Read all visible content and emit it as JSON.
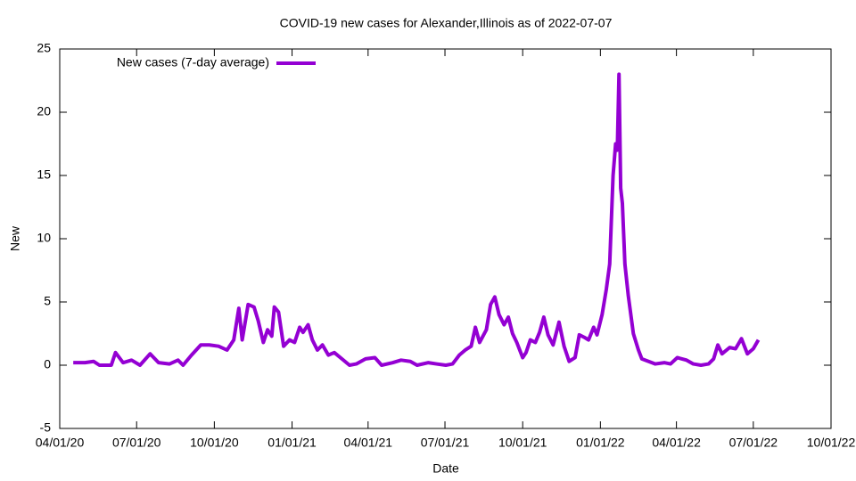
{
  "chart_data": {
    "type": "line",
    "title": "COVID-19 new cases for Alexander,Illinois as of 2022-07-07",
    "x_label": "Date",
    "y_label": "New",
    "legend": "top-left",
    "x": [
      "2020-04-17",
      "2020-05-01",
      "2020-05-11",
      "2020-05-18",
      "2020-06-01",
      "2020-06-06",
      "2020-06-15",
      "2020-06-25",
      "2020-07-05",
      "2020-07-17",
      "2020-07-27",
      "2020-08-09",
      "2020-08-19",
      "2020-08-25",
      "2020-09-04",
      "2020-09-15",
      "2020-09-25",
      "2020-10-06",
      "2020-10-16",
      "2020-10-24",
      "2020-10-30",
      "2020-11-03",
      "2020-11-10",
      "2020-11-17",
      "2020-11-22",
      "2020-11-28",
      "2020-12-03",
      "2020-12-08",
      "2020-12-11",
      "2020-12-16",
      "2020-12-22",
      "2020-12-29",
      "2021-01-04",
      "2021-01-10",
      "2021-01-14",
      "2021-01-20",
      "2021-01-25",
      "2021-01-31",
      "2021-02-06",
      "2021-02-13",
      "2021-02-20",
      "2021-03-01",
      "2021-03-10",
      "2021-03-18",
      "2021-03-29",
      "2021-04-09",
      "2021-04-17",
      "2021-04-30",
      "2021-05-10",
      "2021-05-21",
      "2021-05-29",
      "2021-06-11",
      "2021-06-21",
      "2021-07-02",
      "2021-07-10",
      "2021-07-18",
      "2021-07-25",
      "2021-08-01",
      "2021-08-06",
      "2021-08-11",
      "2021-08-19",
      "2021-08-24",
      "2021-08-29",
      "2021-09-03",
      "2021-09-09",
      "2021-09-14",
      "2021-09-19",
      "2021-09-24",
      "2021-10-01",
      "2021-10-05",
      "2021-10-10",
      "2021-10-16",
      "2021-10-21",
      "2021-10-26",
      "2021-10-31",
      "2021-11-06",
      "2021-11-13",
      "2021-11-19",
      "2021-11-25",
      "2021-12-02",
      "2021-12-07",
      "2021-12-13",
      "2021-12-18",
      "2021-12-24",
      "2021-12-28",
      "2022-01-03",
      "2022-01-08",
      "2022-01-12",
      "2022-01-16",
      "2022-01-19",
      "2022-01-21",
      "2022-01-23",
      "2022-01-25",
      "2022-01-27",
      "2022-01-30",
      "2022-02-03",
      "2022-02-09",
      "2022-02-15",
      "2022-02-19",
      "2022-02-27",
      "2022-03-07",
      "2022-03-18",
      "2022-03-25",
      "2022-04-02",
      "2022-04-13",
      "2022-04-21",
      "2022-04-30",
      "2022-05-09",
      "2022-05-15",
      "2022-05-20",
      "2022-05-25",
      "2022-06-03",
      "2022-06-10",
      "2022-06-17",
      "2022-06-24",
      "2022-07-01",
      "2022-07-07"
    ],
    "series": [
      {
        "name": "New cases (7-day average)",
        "color": "#9400d3",
        "values": [
          0.2,
          0.2,
          0.3,
          0.0,
          0.0,
          1.0,
          0.2,
          0.4,
          0.0,
          0.9,
          0.2,
          0.1,
          0.4,
          0.0,
          0.8,
          1.6,
          1.6,
          1.5,
          1.2,
          2.0,
          4.5,
          2.0,
          4.8,
          4.6,
          3.5,
          1.8,
          2.8,
          2.3,
          4.6,
          4.2,
          1.5,
          2.0,
          1.8,
          3.0,
          2.6,
          3.2,
          2.0,
          1.2,
          1.6,
          0.8,
          1.0,
          0.5,
          0.0,
          0.1,
          0.5,
          0.6,
          0.0,
          0.2,
          0.4,
          0.3,
          0.0,
          0.2,
          0.1,
          0.0,
          0.1,
          0.8,
          1.2,
          1.5,
          3.0,
          1.8,
          2.8,
          4.8,
          5.4,
          4.0,
          3.2,
          3.8,
          2.5,
          1.8,
          0.6,
          1.0,
          2.0,
          1.8,
          2.6,
          3.8,
          2.4,
          1.6,
          3.4,
          1.5,
          0.3,
          0.6,
          2.4,
          2.2,
          2.0,
          3.0,
          2.4,
          4.0,
          6.0,
          8.0,
          15.0,
          17.5,
          17.0,
          23.0,
          14.0,
          12.8,
          8.0,
          5.5,
          2.5,
          1.2,
          0.5,
          0.3,
          0.1,
          0.2,
          0.1,
          0.6,
          0.4,
          0.1,
          0.0,
          0.1,
          0.5,
          1.6,
          0.9,
          1.4,
          1.3,
          2.1,
          0.9,
          1.3,
          2.0
        ]
      }
    ],
    "xlim": [
      "2020-04-01",
      "2022-10-01"
    ],
    "xticks": [
      {
        "value": "2020-04-01",
        "label": "04/01/20"
      },
      {
        "value": "2020-07-01",
        "label": "07/01/20"
      },
      {
        "value": "2020-10-01",
        "label": "10/01/20"
      },
      {
        "value": "2021-01-01",
        "label": "01/01/21"
      },
      {
        "value": "2021-04-01",
        "label": "04/01/21"
      },
      {
        "value": "2021-07-01",
        "label": "07/01/21"
      },
      {
        "value": "2021-10-01",
        "label": "10/01/21"
      },
      {
        "value": "2022-01-01",
        "label": "01/01/22"
      },
      {
        "value": "2022-04-01",
        "label": "04/01/22"
      },
      {
        "value": "2022-07-01",
        "label": "07/01/22"
      },
      {
        "value": "2022-10-01",
        "label": "10/01/22"
      }
    ],
    "ylim": [
      -5,
      25
    ],
    "yticks": [
      -5,
      0,
      5,
      10,
      15,
      20,
      25
    ]
  }
}
